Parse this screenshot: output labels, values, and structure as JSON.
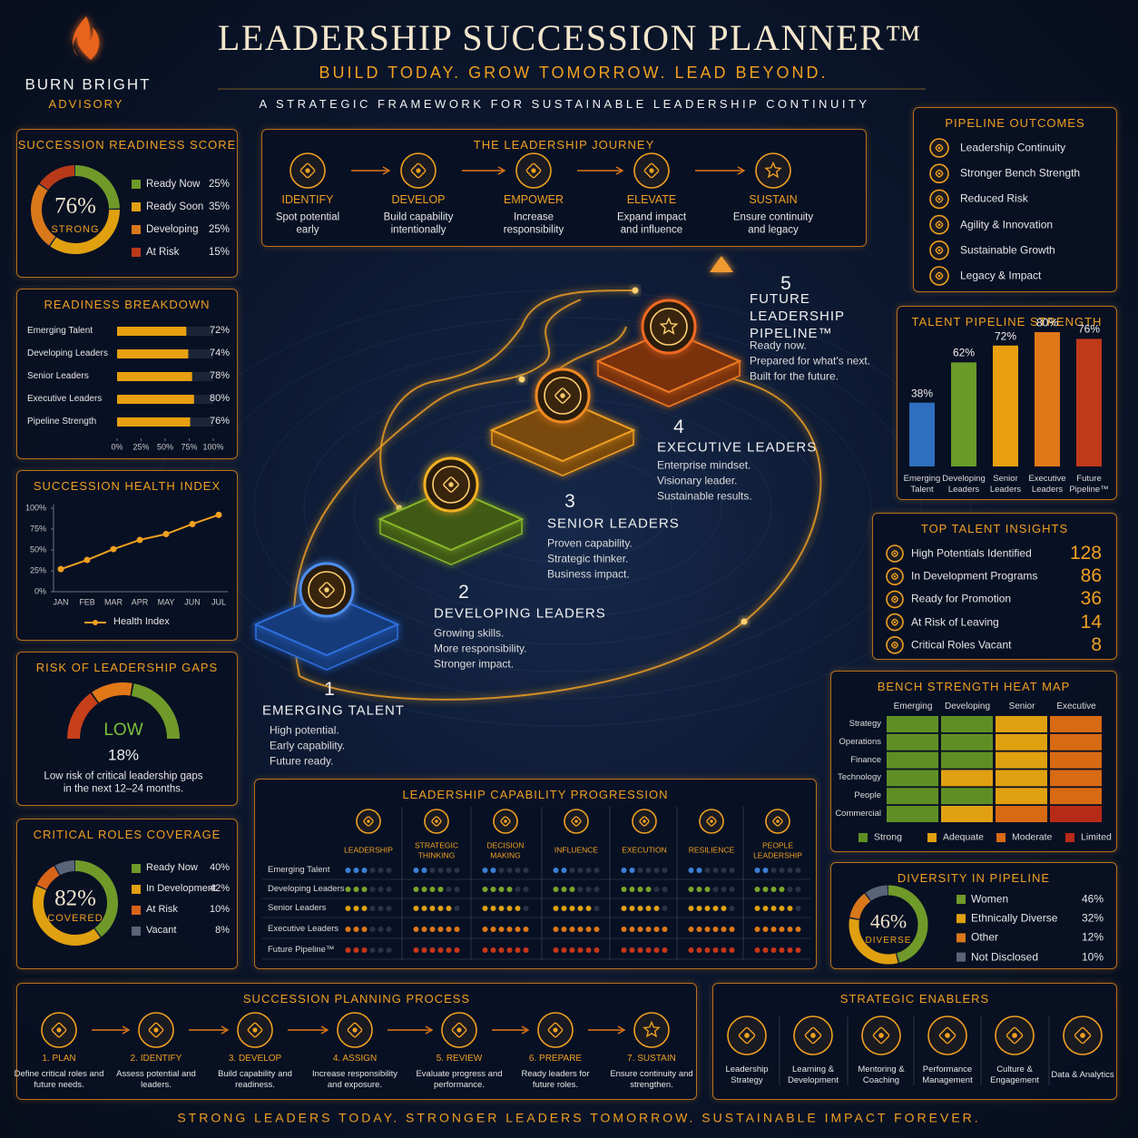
{
  "header": {
    "brand": "BURN BRIGHT",
    "brand_sub": "ADVISORY",
    "title": "LEADERSHIP SUCCESSION PLANNER™",
    "tagline": "BUILD TODAY. GROW TOMORROW. LEAD BEYOND.",
    "subtitle": "A STRATEGIC FRAMEWORK FOR SUSTAINABLE LEADERSHIP CONTINUITY"
  },
  "readiness_score": {
    "title": "SUCCESSION READINESS SCORE",
    "score": "76%",
    "rating": "STRONG",
    "items": [
      {
        "name": "Ready Now",
        "value": 25,
        "label": "25%",
        "color": "#6f9a2a"
      },
      {
        "name": "Ready Soon",
        "value": 35,
        "label": "35%",
        "color": "#e0a010"
      },
      {
        "name": "Developing",
        "value": 25,
        "label": "25%",
        "color": "#d8781a"
      },
      {
        "name": "At Risk",
        "value": 15,
        "label": "15%",
        "color": "#b83a1a"
      }
    ]
  },
  "readiness_breakdown": {
    "title": "READINESS BREAKDOWN",
    "color": "#e8a010",
    "xlim": [
      0,
      100
    ],
    "rows": [
      {
        "name": "Emerging Talent",
        "value": 72,
        "label": "72%"
      },
      {
        "name": "Developing Leaders",
        "value": 74,
        "label": "74%"
      },
      {
        "name": "Senior Leaders",
        "value": 78,
        "label": "78%"
      },
      {
        "name": "Executive Leaders",
        "value": 80,
        "label": "80%"
      },
      {
        "name": "Pipeline Strength",
        "value": 76,
        "label": "76%"
      }
    ],
    "xticks": [
      {
        "value": 0,
        "label": "0%"
      },
      {
        "value": 25,
        "label": "25%"
      },
      {
        "value": 50,
        "label": "50%"
      },
      {
        "value": 75,
        "label": "75%"
      },
      {
        "value": 100,
        "label": "100%"
      }
    ]
  },
  "health_index": {
    "title": "SUCCESSION HEALTH INDEX",
    "color": "#f0a020",
    "months": [
      "JAN",
      "FEB",
      "MAR",
      "APR",
      "MAY",
      "JUN",
      "JUL"
    ],
    "values": [
      27,
      38,
      51,
      62,
      69,
      81,
      92
    ],
    "ylim": [
      0,
      100
    ],
    "yticks": [
      {
        "value": 0,
        "label": "0%"
      },
      {
        "value": 25,
        "label": "25%"
      },
      {
        "value": 50,
        "label": "50%"
      },
      {
        "value": 75,
        "label": "75%"
      },
      {
        "value": 100,
        "label": "100%"
      }
    ],
    "legend": "Health Index"
  },
  "risk_gaps": {
    "title": "RISK OF LEADERSHIP GAPS",
    "level": "LOW",
    "value": "18%",
    "note": "Low risk of critical leadership gaps in the next 12–24 months."
  },
  "critical_roles": {
    "title": "CRITICAL ROLES COVERAGE",
    "score": "82%",
    "rating": "COVERED",
    "items": [
      {
        "name": "Ready Now",
        "value": 40,
        "label": "40%",
        "color": "#6f9a2a"
      },
      {
        "name": "In Development",
        "value": 42,
        "label": "42%",
        "color": "#e0a010"
      },
      {
        "name": "At Risk",
        "value": 10,
        "label": "10%",
        "color": "#d8641a"
      },
      {
        "name": "Vacant",
        "value": 8,
        "label": "8%",
        "color": "#5a6478"
      }
    ]
  },
  "journey": {
    "title": "THE LEADERSHIP JOURNEY",
    "steps": [
      {
        "name": "IDENTIFY",
        "desc": "Spot potential early"
      },
      {
        "name": "DEVELOP",
        "desc": "Build capability intentionally"
      },
      {
        "name": "EMPOWER",
        "desc": "Increase responsibility"
      },
      {
        "name": "ELEVATE",
        "desc": "Expand impact and influence"
      },
      {
        "name": "SUSTAIN",
        "desc": "Ensure continuity and legacy"
      }
    ]
  },
  "levels": [
    {
      "number": 1,
      "name": "EMERGING TALENT",
      "desc": [
        "High potential.",
        "Early capability.",
        "Future ready."
      ]
    },
    {
      "number": 2,
      "name": "DEVELOPING LEADERS",
      "desc": [
        "Growing skills.",
        "More responsibility.",
        "Stronger impact."
      ]
    },
    {
      "number": 3,
      "name": "SENIOR LEADERS",
      "desc": [
        "Proven capability.",
        "Strategic thinker.",
        "Business impact."
      ]
    },
    {
      "number": 4,
      "name": "EXECUTIVE LEADERS",
      "desc": [
        "Enterprise mindset.",
        "Visionary leader.",
        "Sustainable results."
      ]
    },
    {
      "number": 5,
      "name": "FUTURE LEADERSHIP PIPELINE™",
      "desc": [
        "Ready now.",
        "Prepared for what's next.",
        "Built for the future."
      ]
    }
  ],
  "pipeline_outcomes": {
    "title": "PIPELINE OUTCOMES",
    "items": [
      "Leadership Continuity",
      "Stronger Bench Strength",
      "Reduced Risk",
      "Agility & Innovation",
      "Sustainable Growth",
      "Legacy & Impact"
    ]
  },
  "talent_pipeline": {
    "title": "TALENT PIPELINE STRENGTH",
    "bars": [
      {
        "name": "Emerging Talent",
        "value": 38,
        "label": "38%",
        "color": "#2f6fc0"
      },
      {
        "name": "Developing Leaders",
        "value": 62,
        "label": "62%",
        "color": "#6a9a2a"
      },
      {
        "name": "Senior Leaders",
        "value": 72,
        "label": "72%",
        "color": "#e8a010"
      },
      {
        "name": "Executive Leaders",
        "value": 80,
        "label": "80%",
        "color": "#e07818"
      },
      {
        "name": "Future Pipeline™",
        "value": 76,
        "label": "76%",
        "color": "#c03a1a"
      }
    ]
  },
  "top_talent": {
    "title": "TOP TALENT INSIGHTS",
    "items": [
      {
        "name": "High Potentials Identified",
        "value": 128
      },
      {
        "name": "In Development Programs",
        "value": 86
      },
      {
        "name": "Ready for Promotion",
        "value": 36
      },
      {
        "name": "At Risk of Leaving",
        "value": 14
      },
      {
        "name": "Critical Roles Vacant",
        "value": 8
      }
    ]
  },
  "heat_map": {
    "title": "BENCH STRENGTH HEAT MAP",
    "columns": [
      "Emerging",
      "Developing",
      "Senior",
      "Executive"
    ],
    "rows": [
      "Strategy",
      "Operations",
      "Finance",
      "Technology",
      "People",
      "Commercial"
    ],
    "cells": [
      [
        0,
        0,
        1,
        2
      ],
      [
        0,
        0,
        1,
        2
      ],
      [
        0,
        0,
        1,
        2
      ],
      [
        0,
        1,
        1,
        2
      ],
      [
        0,
        0,
        1,
        2
      ],
      [
        0,
        1,
        2,
        3
      ]
    ],
    "legend": [
      {
        "name": "Strong",
        "color": "#5f8f24"
      },
      {
        "name": "Adequate",
        "color": "#e0a010"
      },
      {
        "name": "Moderate",
        "color": "#d86a14"
      },
      {
        "name": "Limited",
        "color": "#b82a18"
      }
    ]
  },
  "capability": {
    "title": "LEADERSHIP CAPABILITY PROGRESSION",
    "columns": [
      "LEADERSHIP",
      "STRATEGIC THINKING",
      "DECISION MAKING",
      "INFLUENCE",
      "EXECUTION",
      "RESILIENCE",
      "PEOPLE LEADERSHIP"
    ],
    "rows": [
      {
        "name": "Emerging Talent",
        "color": "#3d7fd8",
        "ratings": [
          3,
          2,
          2,
          2,
          2,
          2,
          2
        ]
      },
      {
        "name": "Developing Leaders",
        "color": "#7aa62c",
        "ratings": [
          3,
          4,
          4,
          3,
          4,
          3,
          4
        ]
      },
      {
        "name": "Senior Leaders",
        "color": "#e0a010",
        "ratings": [
          3,
          5,
          5,
          5,
          5,
          5,
          5
        ]
      },
      {
        "name": "Executive Leaders",
        "color": "#e07818",
        "ratings": [
          3,
          6,
          6,
          6,
          6,
          6,
          6
        ]
      },
      {
        "name": "Future Pipeline™",
        "color": "#c8361a",
        "ratings": [
          3,
          6,
          6,
          6,
          6,
          6,
          6
        ]
      }
    ]
  },
  "diversity": {
    "title": "DIVERSITY IN PIPELINE",
    "score": "46%",
    "rating": "DIVERSE",
    "items": [
      {
        "name": "Women",
        "value": 46,
        "label": "46%",
        "color": "#6f9a2a"
      },
      {
        "name": "Ethnically Diverse",
        "value": 32,
        "label": "32%",
        "color": "#e0a010"
      },
      {
        "name": "Other",
        "value": 12,
        "label": "12%",
        "color": "#d8781a"
      },
      {
        "name": "Not Disclosed",
        "value": 10,
        "label": "10%",
        "color": "#5a6478"
      }
    ]
  },
  "process": {
    "title": "SUCCESSION PLANNING PROCESS",
    "steps": [
      {
        "name": "1. PLAN",
        "desc": "Define critical roles and future needs."
      },
      {
        "name": "2. IDENTIFY",
        "desc": "Assess potential and leaders."
      },
      {
        "name": "3. DEVELOP",
        "desc": "Build capability and readiness."
      },
      {
        "name": "4. ASSIGN",
        "desc": "Increase responsibility and exposure."
      },
      {
        "name": "5. REVIEW",
        "desc": "Evaluate progress and performance."
      },
      {
        "name": "6. PREPARE",
        "desc": "Ready leaders for future roles."
      },
      {
        "name": "7. SUSTAIN",
        "desc": "Ensure continuity and strengthen."
      }
    ]
  },
  "enablers": {
    "title": "STRATEGIC ENABLERS",
    "items": [
      "Leadership Strategy",
      "Learning & Development",
      "Mentoring & Coaching",
      "Performance Management",
      "Culture & Engagement",
      "Data & Analytics"
    ]
  },
  "footer": "STRONG LEADERS TODAY. STRONGER LEADERS TOMORROW. SUSTAINABLE IMPACT FOREVER."
}
